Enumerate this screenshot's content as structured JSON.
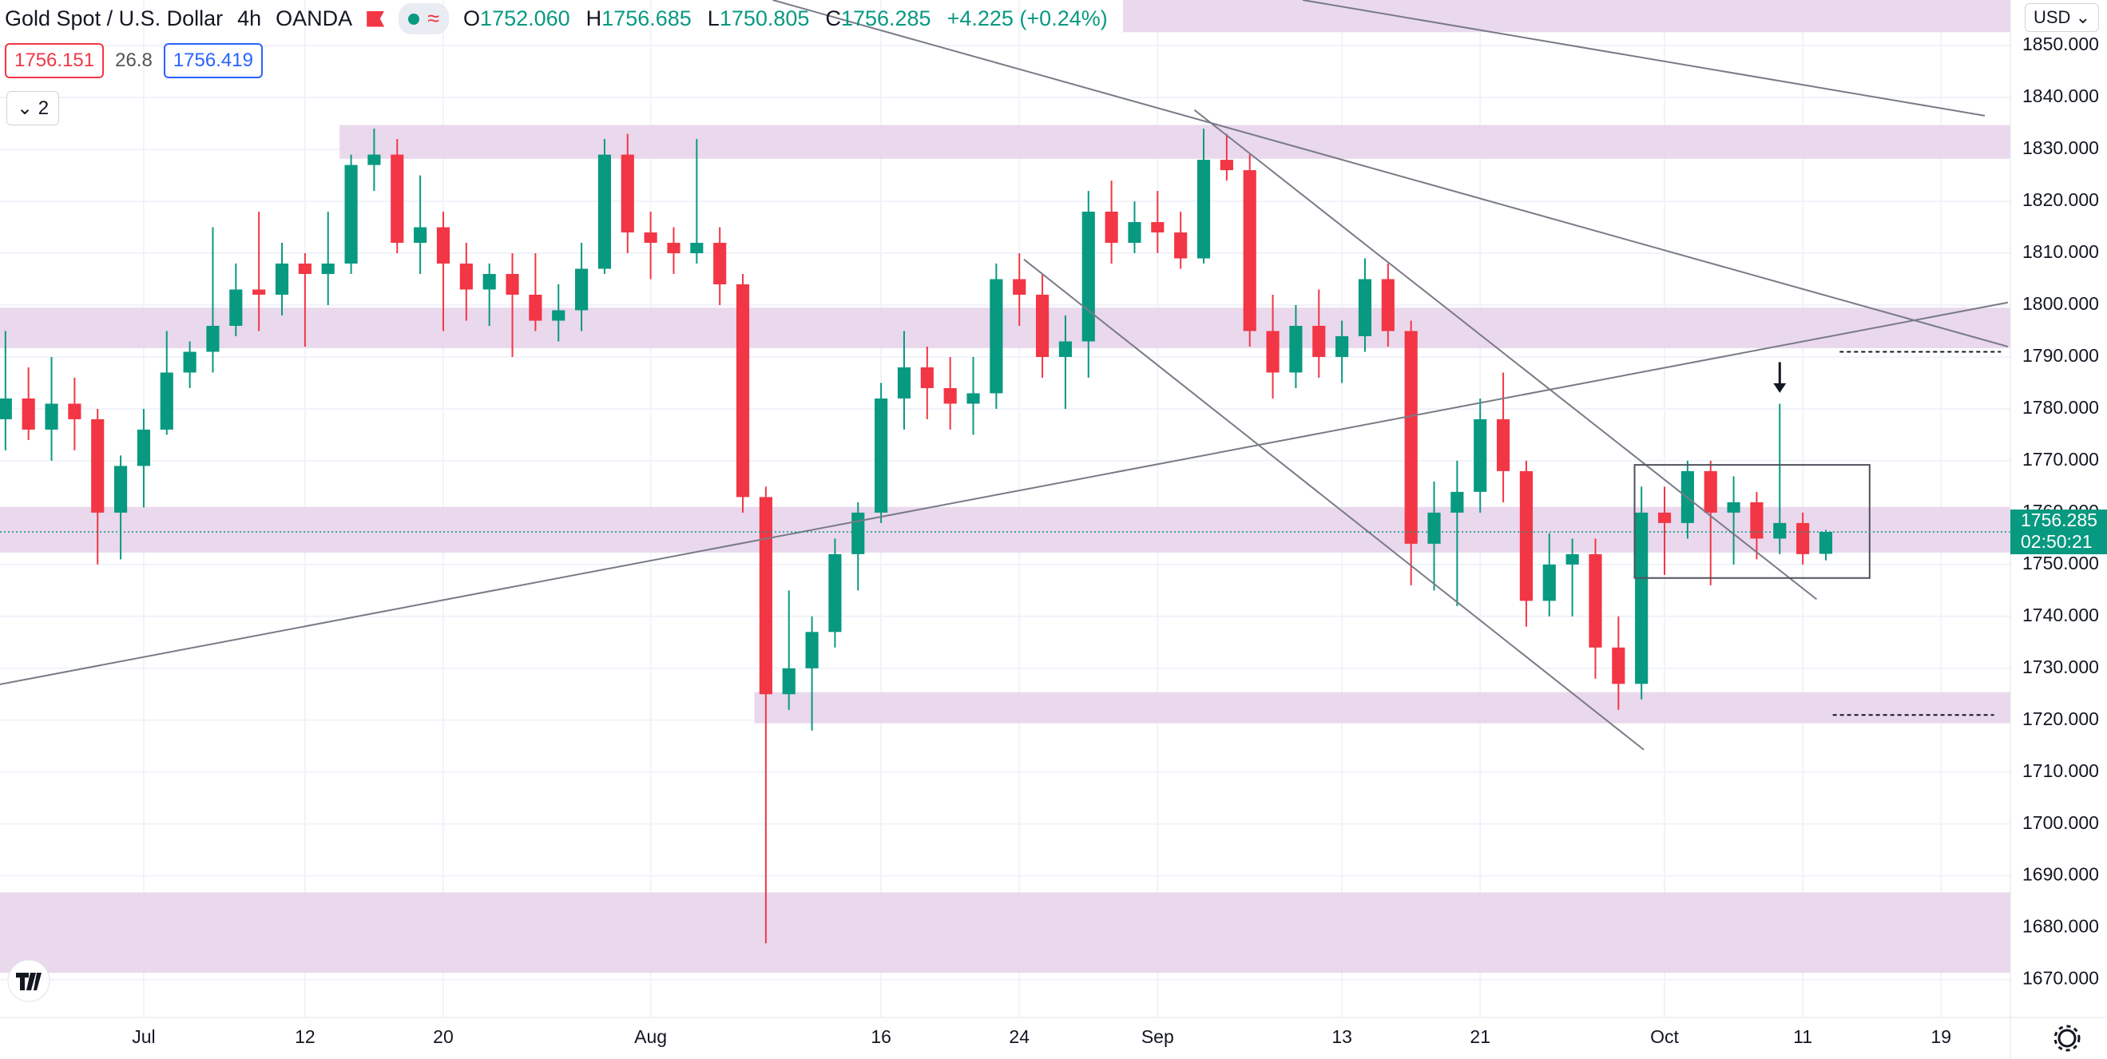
{
  "header": {
    "symbol": "Gold Spot / U.S. Dollar",
    "interval": "4h",
    "broker": "OANDA",
    "ohlc": [
      {
        "key": "O",
        "value": "1752.060"
      },
      {
        "key": "H",
        "value": "1756.685"
      },
      {
        "key": "L",
        "value": "1750.805"
      },
      {
        "key": "C",
        "value": "1756.285"
      }
    ],
    "change": "+4.225 (+0.24%)",
    "sell": "1756.151",
    "spread": "26.8",
    "buy": "1756.419",
    "indicators": "2",
    "currency": "USD"
  },
  "chart_data": {
    "type": "candlestick",
    "categories": [
      null,
      null,
      null,
      null,
      null,
      null,
      "Jul",
      null,
      null,
      null,
      null,
      null,
      null,
      "12",
      null,
      null,
      null,
      null,
      null,
      "20",
      null,
      null,
      null,
      null,
      null,
      null,
      null,
      null,
      "Aug",
      null,
      null,
      null,
      null,
      null,
      null,
      null,
      null,
      null,
      "16",
      null,
      null,
      null,
      null,
      null,
      "24",
      null,
      null,
      null,
      null,
      null,
      "Sep",
      null,
      null,
      null,
      null,
      null,
      null,
      null,
      "13",
      null,
      null,
      null,
      null,
      null,
      "21",
      null,
      null,
      null,
      null,
      null,
      null,
      null,
      "Oct",
      null,
      null,
      null,
      null,
      null,
      "11",
      null,
      null,
      null,
      null,
      null,
      "19",
      null,
      null,
      null
    ],
    "open": [
      1778,
      1782,
      1776,
      1781,
      1778,
      1760,
      1769,
      1776,
      1787,
      1791,
      1796,
      1803,
      1802,
      1808,
      1806,
      1808,
      1827,
      1829,
      1812,
      1815,
      1808,
      1803,
      1806,
      1802,
      1797,
      1799,
      1807,
      1829,
      1814,
      1812,
      1810,
      1812,
      1804,
      1763,
      1725,
      1730,
      1737,
      1752,
      1760,
      1782,
      1788,
      1784,
      1781,
      1783,
      1805,
      1802,
      1790,
      1793,
      1818,
      1812,
      1816,
      1814,
      1809,
      1828,
      1826,
      1795,
      1787,
      1796,
      1790,
      1794,
      1805,
      1795,
      1754,
      1760,
      1764,
      1778,
      1768,
      1743,
      1750,
      1752,
      1734,
      1727,
      1760,
      1758,
      1768,
      1760,
      1762,
      1755,
      1758,
      1752.06,
      null,
      null,
      null,
      null,
      null,
      null,
      null,
      null
    ],
    "high": [
      1795,
      1788,
      1790,
      1786,
      1780,
      1771,
      1780,
      1795,
      1793,
      1815,
      1808,
      1818,
      1812,
      1810,
      1818,
      1829,
      1834,
      1832,
      1825,
      1818,
      1812,
      1808,
      1810,
      1810,
      1804,
      1812,
      1832,
      1833,
      1818,
      1815,
      1832,
      1815,
      1806,
      1765,
      1745,
      1740,
      1755,
      1762,
      1785,
      1795,
      1792,
      1790,
      1790,
      1808,
      1810,
      1806,
      1798,
      1822,
      1824,
      1820,
      1822,
      1818,
      1834,
      1833,
      1829,
      1802,
      1800,
      1803,
      1797,
      1809,
      1808,
      1797,
      1766,
      1770,
      1782,
      1787,
      1770,
      1756,
      1755,
      1755,
      1740,
      1765,
      1765,
      1770,
      1770,
      1767,
      1764,
      1781,
      1760,
      1756.685,
      null,
      null,
      null,
      null,
      null,
      null,
      null,
      null
    ],
    "low": [
      1772,
      1774,
      1770,
      1772,
      1750,
      1751,
      1761,
      1775,
      1784,
      1787,
      1794,
      1795,
      1798,
      1792,
      1800,
      1806,
      1822,
      1810,
      1806,
      1795,
      1797,
      1796,
      1790,
      1795,
      1793,
      1795,
      1806,
      1810,
      1805,
      1806,
      1808,
      1800,
      1760,
      1677,
      1722,
      1718,
      1734,
      1745,
      1758,
      1776,
      1778,
      1776,
      1775,
      1780,
      1796,
      1786,
      1780,
      1786,
      1808,
      1810,
      1810,
      1807,
      1808,
      1824,
      1792,
      1782,
      1784,
      1786,
      1785,
      1791,
      1792,
      1746,
      1745,
      1742,
      1760,
      1762,
      1738,
      1740,
      1740,
      1728,
      1722,
      1724,
      1748,
      1755,
      1746,
      1750,
      1751,
      1752,
      1750,
      1750.805,
      null,
      null,
      null,
      null,
      null,
      null,
      null,
      null
    ],
    "close": [
      1782,
      1776,
      1781,
      1778,
      1760,
      1769,
      1776,
      1787,
      1791,
      1796,
      1803,
      1802,
      1808,
      1806,
      1808,
      1827,
      1829,
      1812,
      1815,
      1808,
      1803,
      1806,
      1802,
      1797,
      1799,
      1807,
      1829,
      1814,
      1812,
      1810,
      1812,
      1804,
      1763,
      1725,
      1730,
      1737,
      1752,
      1760,
      1782,
      1788,
      1784,
      1781,
      1783,
      1805,
      1802,
      1790,
      1793,
      1818,
      1812,
      1816,
      1814,
      1809,
      1828,
      1826,
      1795,
      1787,
      1796,
      1790,
      1794,
      1805,
      1795,
      1754,
      1760,
      1764,
      1778,
      1768,
      1743,
      1750,
      1752,
      1734,
      1727,
      1760,
      1758,
      1768,
      1760,
      1762,
      1755,
      1758,
      1752,
      1756.285,
      null,
      null,
      null,
      null,
      null,
      null,
      null,
      null
    ],
    "up_color": "#089981",
    "down_color": "#f23645",
    "ylim": [
      1662.7,
      1858.8
    ],
    "yticks": [
      {
        "value": 1670,
        "label": "1670.000"
      },
      {
        "value": 1680,
        "label": "1680.000"
      },
      {
        "value": 1690,
        "label": "1690.000"
      },
      {
        "value": 1700,
        "label": "1700.000"
      },
      {
        "value": 1710,
        "label": "1710.000"
      },
      {
        "value": 1720,
        "label": "1720.000"
      },
      {
        "value": 1730,
        "label": "1730.000"
      },
      {
        "value": 1740,
        "label": "1740.000"
      },
      {
        "value": 1750,
        "label": "1750.000"
      },
      {
        "value": 1760,
        "label": "1760.000"
      },
      {
        "value": 1770,
        "label": "1770.000"
      },
      {
        "value": 1780,
        "label": "1780.000"
      },
      {
        "value": 1790,
        "label": "1790.000"
      },
      {
        "value": 1800,
        "label": "1800.000"
      },
      {
        "value": 1810,
        "label": "1810.000"
      },
      {
        "value": 1820,
        "label": "1820.000"
      },
      {
        "value": 1830,
        "label": "1830.000"
      },
      {
        "value": 1840,
        "label": "1840.000"
      },
      {
        "value": 1850,
        "label": "1850.000"
      }
    ],
    "grid": true,
    "last_price": 1756.285,
    "countdown": "02:50:21",
    "badge_color": "#089981",
    "zone_color": "#e6d1ea",
    "zones": [
      {
        "from": 1852.6,
        "to": 1858.8,
        "start": 49
      },
      {
        "from": 1828.2,
        "to": 1834.7,
        "start": 15
      },
      {
        "from": 1791.7,
        "to": 1799.5,
        "start": 0
      },
      {
        "from": 1752.3,
        "to": 1761.1,
        "start": 0
      },
      {
        "from": 1719.4,
        "to": 1725.4,
        "start": 33
      },
      {
        "from": 1671.3,
        "to": 1686.8,
        "start": 0
      }
    ],
    "trend_lines": [
      {
        "x": [
          33.3,
          86.9
        ],
        "y": [
          1858.8,
          1792
        ]
      },
      {
        "x": [
          56.3,
          85.9
        ],
        "y": [
          1858.8,
          1836.5
        ]
      },
      {
        "x": [
          -0.24,
          86.9
        ],
        "y": [
          1726.9,
          1800.5
        ]
      },
      {
        "x": [
          51.6,
          78.6
        ],
        "y": [
          1837.6,
          1743.3
        ]
      },
      {
        "x": [
          44.2,
          71.1
        ],
        "y": [
          1808.8,
          1714.3
        ]
      }
    ],
    "box": {
      "x": [
        70.7,
        80.9
      ],
      "y": [
        1769.2,
        1747.4
      ]
    },
    "levels": [
      {
        "x": [
          79.6,
          86.6
        ],
        "y": 1791
      },
      {
        "x": [
          79.3,
          86.3
        ],
        "y": 1721
      }
    ],
    "arrow": {
      "x": 77,
      "y": [
        1789,
        1783.7
      ]
    }
  }
}
